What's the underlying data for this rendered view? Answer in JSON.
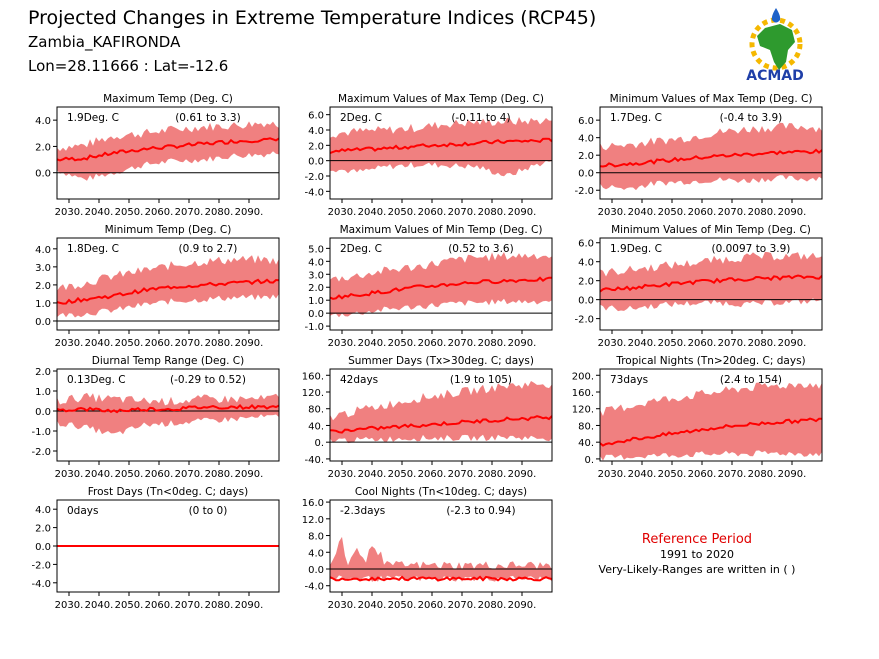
{
  "header": {
    "title": "Projected Changes in Extreme Temperature Indices (RCP45)",
    "location": "Zambia_KAFIRONDA",
    "coords": "Lon=28.11666 : Lat=-12.6"
  },
  "logo": {
    "text": "ACMAD"
  },
  "reference": {
    "heading": "Reference Period",
    "period": "1991 to 2020",
    "note": "Very-Likely-Ranges are written in ( )"
  },
  "colors": {
    "band": "#f08080",
    "line": "#ff0000",
    "axis": "#000000",
    "heading": "#e00000",
    "logo_text": "#1f3fa8",
    "africa": "#2e9a2e",
    "sun": "#f5b800",
    "drop": "#1e62c8"
  },
  "chart_data": [
    {
      "type": "line",
      "title": "Maximum Temp (Deg. C)",
      "summary": "1.9Deg. C",
      "range": "(0.61 to 3.3)",
      "x_ticks": [
        "2030.",
        "2040.",
        "2050.",
        "2060.",
        "2070.",
        "2080.",
        "2090."
      ],
      "y_ticks": [
        "0.0",
        "2.0",
        "4.0"
      ],
      "ylim": [
        -2,
        5
      ],
      "xlim": [
        2026,
        2100
      ],
      "zero_line": true,
      "series": [
        {
          "x": [
            2026,
            2035,
            2045,
            2055,
            2065,
            2075,
            2085,
            2095,
            2100
          ],
          "y": [
            1.0,
            1.1,
            1.5,
            1.8,
            2.0,
            2.2,
            2.4,
            2.5,
            2.5
          ],
          "lo": [
            0.2,
            -0.5,
            0.0,
            0.6,
            0.9,
            1.0,
            1.3,
            1.4,
            1.6
          ],
          "hi": [
            1.9,
            2.1,
            2.8,
            3.0,
            3.3,
            3.5,
            3.6,
            3.8,
            3.7
          ]
        }
      ]
    },
    {
      "type": "line",
      "title": "Maximum Values of Max Temp (Deg. C)",
      "summary": "2Deg. C",
      "range": "(-0.11 to 4)",
      "x_ticks": [
        "2030.",
        "2040.",
        "2050.",
        "2060.",
        "2070.",
        "2080.",
        "2090."
      ],
      "y_ticks": [
        "-4.0",
        "-2.0",
        "0.0",
        "2.0",
        "4.0",
        "6.0"
      ],
      "ylim": [
        -5,
        7
      ],
      "xlim": [
        2026,
        2100
      ],
      "zero_line": true,
      "series": [
        {
          "x": [
            2026,
            2035,
            2045,
            2055,
            2065,
            2075,
            2085,
            2095,
            2100
          ],
          "y": [
            1.2,
            1.4,
            1.6,
            1.9,
            2.1,
            2.3,
            2.5,
            2.6,
            2.7
          ],
          "lo": [
            -1.0,
            -1.5,
            -0.8,
            -0.5,
            -0.6,
            -0.8,
            -2.0,
            -0.5,
            0.0
          ],
          "hi": [
            3.5,
            3.8,
            4.0,
            4.3,
            4.8,
            5.0,
            5.1,
            5.2,
            5.3
          ]
        }
      ]
    },
    {
      "type": "line",
      "title": "Minimum Values of Max Temp (Deg. C)",
      "summary": "1.7Deg. C",
      "range": "(-0.4 to 3.9)",
      "x_ticks": [
        "2030.",
        "2040.",
        "2050.",
        "2060.",
        "2070.",
        "2080.",
        "2090."
      ],
      "y_ticks": [
        "-2.0",
        "0.0",
        "2.0",
        "4.0",
        "6.0"
      ],
      "ylim": [
        -3,
        7.5
      ],
      "xlim": [
        2026,
        2100
      ],
      "zero_line": true,
      "series": [
        {
          "x": [
            2026,
            2035,
            2045,
            2055,
            2065,
            2075,
            2085,
            2095,
            2100
          ],
          "y": [
            0.8,
            1.0,
            1.3,
            1.6,
            1.9,
            2.1,
            2.3,
            2.4,
            2.4
          ],
          "lo": [
            -1.5,
            -1.8,
            -1.2,
            -1.0,
            -0.8,
            -0.9,
            -0.6,
            -0.7,
            -0.5
          ],
          "hi": [
            3.0,
            3.2,
            3.6,
            4.0,
            4.6,
            5.0,
            5.2,
            5.3,
            5.0
          ]
        }
      ]
    },
    {
      "type": "line",
      "title": "Minimum Temp (Deg. C)",
      "summary": "1.8Deg. C",
      "range": "(0.9 to 2.7)",
      "x_ticks": [
        "2030.",
        "2040.",
        "2050.",
        "2060.",
        "2070.",
        "2080.",
        "2090."
      ],
      "y_ticks": [
        "0.0",
        "1.0",
        "2.0",
        "3.0",
        "4.0"
      ],
      "ylim": [
        -0.5,
        4.6
      ],
      "xlim": [
        2026,
        2100
      ],
      "zero_line": true,
      "series": [
        {
          "x": [
            2026,
            2035,
            2045,
            2055,
            2065,
            2075,
            2085,
            2095,
            2100
          ],
          "y": [
            1.0,
            1.2,
            1.4,
            1.7,
            1.9,
            2.0,
            2.1,
            2.2,
            2.2
          ],
          "lo": [
            0.3,
            0.4,
            0.6,
            0.9,
            1.1,
            1.2,
            1.3,
            1.3,
            1.4
          ],
          "hi": [
            1.8,
            2.1,
            2.5,
            2.8,
            3.1,
            3.3,
            3.4,
            3.4,
            3.3
          ]
        }
      ]
    },
    {
      "type": "line",
      "title": "Maximum Values of Min Temp (Deg. C)",
      "summary": "2Deg. C",
      "range": "(0.52 to 3.6)",
      "x_ticks": [
        "2030.",
        "2040.",
        "2050.",
        "2060.",
        "2070.",
        "2080.",
        "2090."
      ],
      "y_ticks": [
        "-1.0",
        "0.0",
        "1.0",
        "2.0",
        "3.0",
        "4.0",
        "5.0"
      ],
      "ylim": [
        -1.3,
        5.8
      ],
      "xlim": [
        2026,
        2100
      ],
      "zero_line": true,
      "series": [
        {
          "x": [
            2026,
            2035,
            2045,
            2055,
            2065,
            2075,
            2085,
            2095,
            2100
          ],
          "y": [
            1.2,
            1.4,
            1.7,
            2.0,
            2.2,
            2.4,
            2.5,
            2.6,
            2.6
          ],
          "lo": [
            -0.2,
            0.0,
            0.3,
            0.5,
            0.7,
            0.8,
            0.9,
            0.9,
            1.0
          ],
          "hi": [
            2.6,
            2.9,
            3.3,
            3.6,
            4.0,
            4.3,
            4.4,
            4.5,
            4.4
          ]
        }
      ]
    },
    {
      "type": "line",
      "title": "Minimum Values of Min Temp (Deg. C)",
      "summary": "1.9Deg. C",
      "range": "(0.0097 to 3.9)",
      "x_ticks": [
        "2030.",
        "2040.",
        "2050.",
        "2060.",
        "2070.",
        "2080.",
        "2090."
      ],
      "y_ticks": [
        "-2.0",
        "0.0",
        "2.0",
        "4.0",
        "6.0"
      ],
      "ylim": [
        -3.2,
        6.5
      ],
      "xlim": [
        2026,
        2100
      ],
      "zero_line": true,
      "series": [
        {
          "x": [
            2026,
            2035,
            2045,
            2055,
            2065,
            2075,
            2085,
            2095,
            2100
          ],
          "y": [
            1.0,
            1.2,
            1.5,
            1.8,
            2.0,
            2.2,
            2.3,
            2.4,
            2.4
          ],
          "lo": [
            -0.8,
            -1.0,
            -0.6,
            -0.4,
            -0.3,
            -0.5,
            -0.3,
            -0.2,
            0.0
          ],
          "hi": [
            2.8,
            3.1,
            3.5,
            3.8,
            4.2,
            4.5,
            4.6,
            4.6,
            4.5
          ]
        }
      ]
    },
    {
      "type": "line",
      "title": "Diurnal Temp Range (Deg. C)",
      "summary": "0.13Deg. C",
      "range": "(-0.29 to 0.52)",
      "x_ticks": [
        "2030.",
        "2040.",
        "2050.",
        "2060.",
        "2070.",
        "2080.",
        "2090."
      ],
      "y_ticks": [
        "-2.0",
        "-1.0",
        "0.0",
        "1.0",
        "2.0"
      ],
      "ylim": [
        -2.5,
        2.1
      ],
      "xlim": [
        2026,
        2100
      ],
      "zero_line": true,
      "series": [
        {
          "x": [
            2026,
            2035,
            2045,
            2055,
            2065,
            2075,
            2085,
            2095,
            2100
          ],
          "y": [
            0.05,
            0.1,
            0.0,
            0.1,
            0.1,
            0.2,
            0.2,
            0.2,
            0.25
          ],
          "lo": [
            -0.6,
            -0.8,
            -1.2,
            -0.7,
            -0.6,
            -0.5,
            -0.4,
            -0.3,
            -0.3
          ],
          "hi": [
            0.5,
            0.7,
            0.6,
            0.5,
            0.5,
            0.6,
            0.6,
            0.6,
            0.7
          ]
        }
      ]
    },
    {
      "type": "line",
      "title": "Summer Days (Tx>30deg. C; days)",
      "summary": "42days",
      "range": "(1.9 to 105)",
      "x_ticks": [
        "2030.",
        "2040.",
        "2050.",
        "2060.",
        "2070.",
        "2080.",
        "2090."
      ],
      "y_ticks": [
        "-40.",
        "0.",
        "40.",
        "80.",
        "120.",
        "160."
      ],
      "ylim": [
        -45,
        175
      ],
      "xlim": [
        2026,
        2100
      ],
      "zero_line": true,
      "series": [
        {
          "x": [
            2026,
            2035,
            2045,
            2055,
            2065,
            2075,
            2085,
            2095,
            2100
          ],
          "y": [
            25,
            30,
            35,
            40,
            45,
            50,
            55,
            58,
            60
          ],
          "lo": [
            5,
            5,
            8,
            10,
            10,
            10,
            12,
            10,
            10
          ],
          "hi": [
            60,
            75,
            90,
            105,
            115,
            125,
            135,
            140,
            140
          ]
        }
      ]
    },
    {
      "type": "line",
      "title": "Tropical Nights (Tn>20deg. C; days)",
      "summary": "73days",
      "range": "(2.4 to 154)",
      "x_ticks": [
        "2030.",
        "2040.",
        "2050.",
        "2060.",
        "2070.",
        "2080.",
        "2090."
      ],
      "y_ticks": [
        "0.",
        "40.",
        "80.",
        "120.",
        "160.",
        "200."
      ],
      "ylim": [
        -5,
        215
      ],
      "xlim": [
        2026,
        2100
      ],
      "zero_line": false,
      "series": [
        {
          "x": [
            2026,
            2035,
            2045,
            2055,
            2065,
            2075,
            2085,
            2095,
            2100
          ],
          "y": [
            35,
            45,
            55,
            65,
            75,
            82,
            88,
            92,
            95
          ],
          "lo": [
            2,
            5,
            8,
            10,
            12,
            12,
            14,
            12,
            12
          ],
          "hi": [
            110,
            125,
            140,
            150,
            160,
            170,
            175,
            180,
            175
          ]
        }
      ]
    },
    {
      "type": "line",
      "title": "Frost Days (Tn<0deg. C; days)",
      "summary": "0days",
      "range": "(0 to 0)",
      "x_ticks": [
        "2030.",
        "2040.",
        "2050.",
        "2060.",
        "2070.",
        "2080.",
        "2090."
      ],
      "y_ticks": [
        "-4.0",
        "-2.0",
        "0.0",
        "2.0",
        "4.0"
      ],
      "ylim": [
        -5,
        5
      ],
      "xlim": [
        2026,
        2100
      ],
      "zero_line": true,
      "series": [
        {
          "x": [
            2026,
            2100
          ],
          "y": [
            0,
            0
          ],
          "lo": [
            0,
            0
          ],
          "hi": [
            0,
            0
          ]
        }
      ]
    },
    {
      "type": "line",
      "title": "Cool Nights (Tn<10deg. C; days)",
      "summary": "-2.3days",
      "range": "(-2.3 to 0.94)",
      "x_ticks": [
        "2030.",
        "2040.",
        "2050.",
        "2060.",
        "2070.",
        "2080.",
        "2090."
      ],
      "y_ticks": [
        "-4.0",
        "0.0",
        "4.0",
        "8.0",
        "12.0",
        "16.0"
      ],
      "ylim": [
        -5.5,
        16.5
      ],
      "xlim": [
        2026,
        2100
      ],
      "zero_line": true,
      "series": [
        {
          "x": [
            2026,
            2030,
            2032,
            2035,
            2038,
            2040,
            2045,
            2100
          ],
          "y": [
            -2.2,
            -2.3,
            -2.3,
            -2.3,
            -2.3,
            -2.3,
            -2.3,
            -2.3
          ],
          "lo": [
            -2.3,
            -2.3,
            -2.3,
            -2.3,
            -2.3,
            -2.3,
            -2.3,
            -2.3
          ],
          "hi": [
            0.9,
            7.0,
            0.9,
            5.5,
            0.9,
            6.5,
            0.9,
            0.9
          ]
        }
      ]
    }
  ]
}
